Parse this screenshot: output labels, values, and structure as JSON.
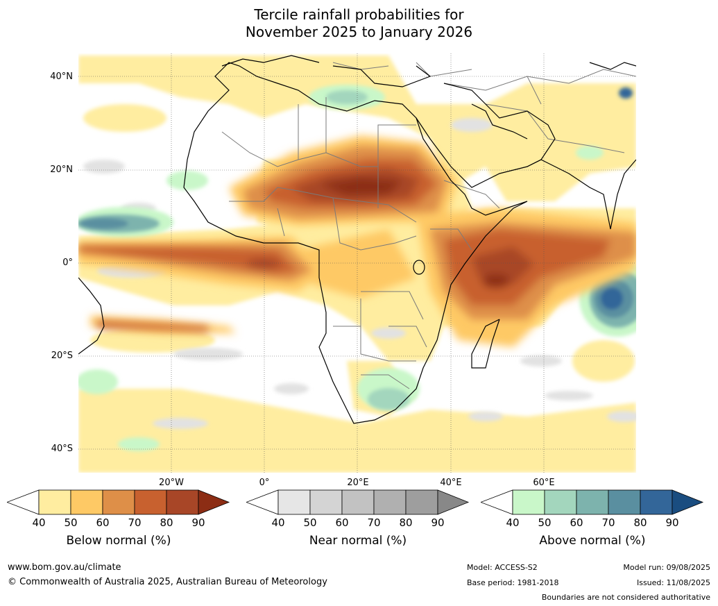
{
  "title": {
    "line1": "Tercile rainfall probabilities for",
    "line2": "November 2025 to January 2026"
  },
  "map": {
    "lat_labels": [
      "40°N",
      "20°N",
      "0°",
      "20°S",
      "40°S"
    ],
    "lon_labels": [
      "20°W",
      "0°",
      "20°E",
      "40°E",
      "60°E"
    ]
  },
  "colorbars": [
    {
      "name": "below",
      "title": "Below normal (%)",
      "ticks": [
        "40",
        "50",
        "60",
        "70",
        "80",
        "90"
      ],
      "colors": [
        "#ffeda0",
        "#fec965",
        "#de8f48",
        "#c8612f",
        "#a84627"
      ],
      "extend_color": "#8c2d14"
    },
    {
      "name": "near",
      "title": "Near normal (%)",
      "ticks": [
        "40",
        "50",
        "60",
        "70",
        "80",
        "90"
      ],
      "colors": [
        "#e6e6e6",
        "#d4d4d4",
        "#c2c2c2",
        "#b0b0b0",
        "#9e9e9e"
      ],
      "extend_color": "#888888"
    },
    {
      "name": "above",
      "title": "Above normal (%)",
      "ticks": [
        "40",
        "50",
        "60",
        "70",
        "80",
        "90"
      ],
      "colors": [
        "#c9f7c9",
        "#a3d6bd",
        "#7db3ad",
        "#5a8fa0",
        "#336699"
      ],
      "extend_color": "#1a4d80"
    }
  ],
  "footer": {
    "website": "www.bom.gov.au/climate",
    "copyright": "© Commonwealth of Australia 2025, Australian Bureau of Meteorology",
    "model": "Model: ACCESS-S2",
    "base_period": "Base period: 1981-2018",
    "model_run": "Model run: 09/08/2025",
    "issued": "Issued: 11/08/2025",
    "disclaimer": "Boundaries are not considered authoritative"
  }
}
